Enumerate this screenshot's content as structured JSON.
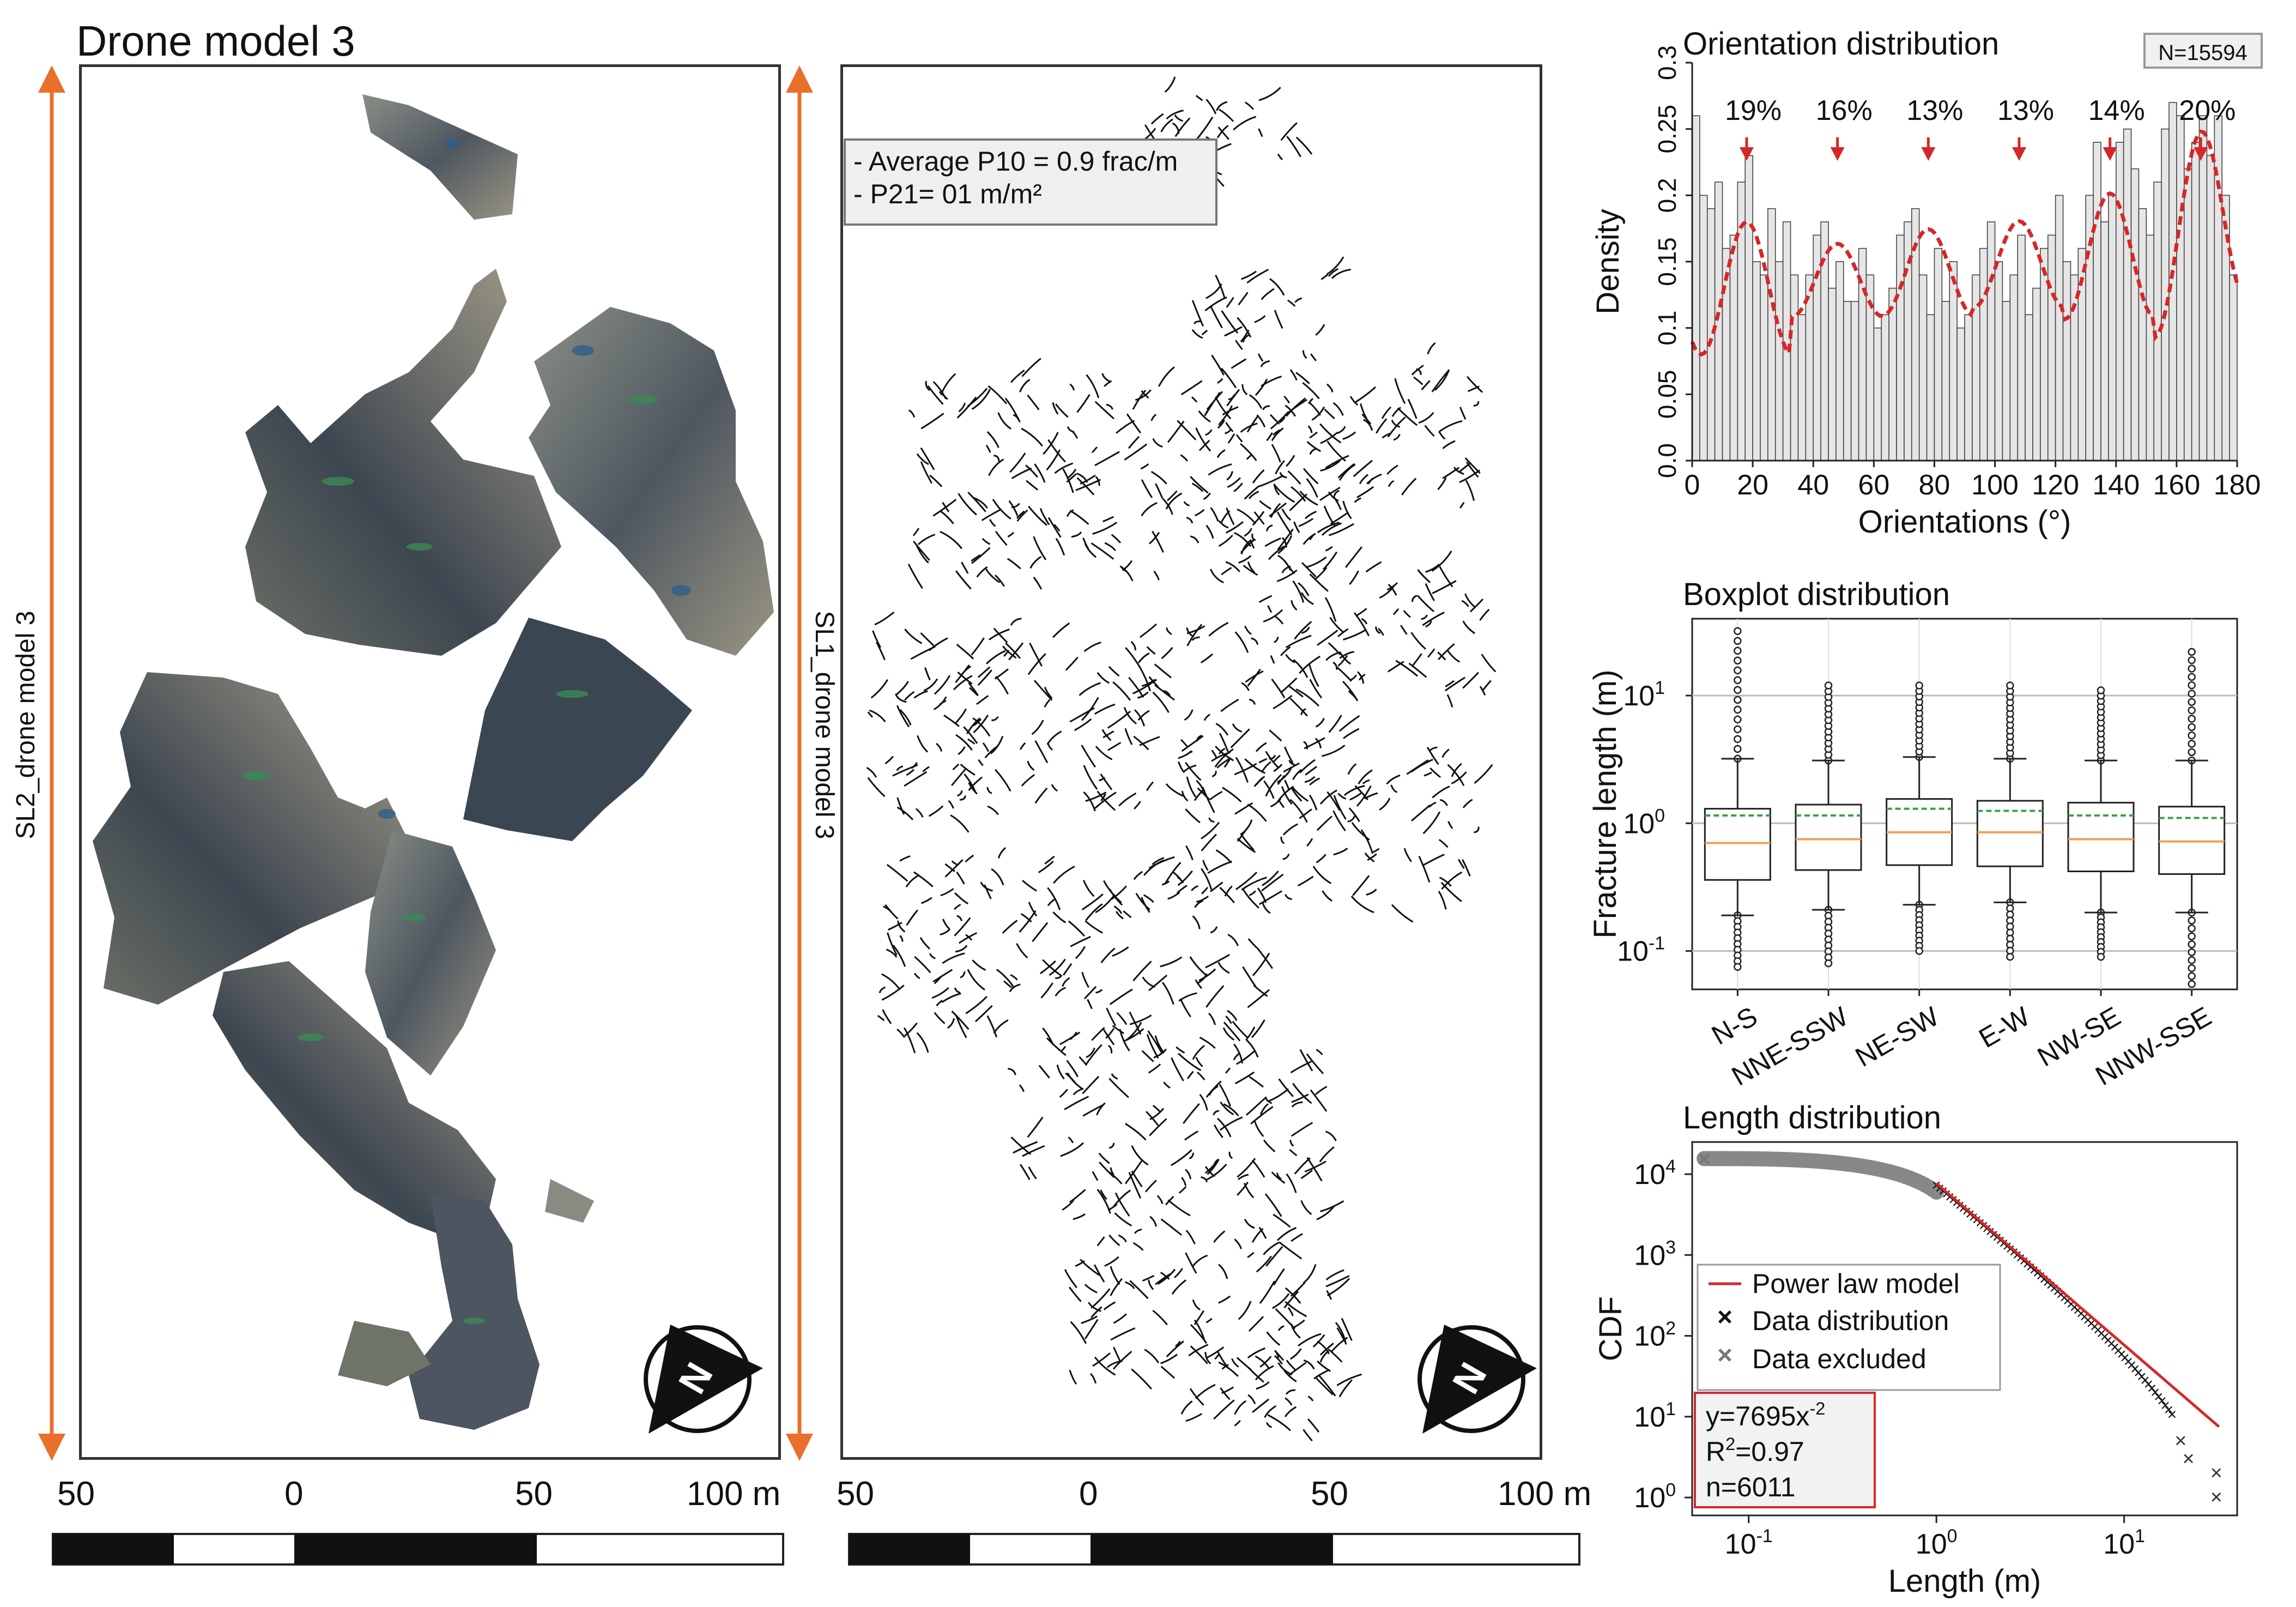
{
  "figure_title": "Drone model 3",
  "left_panel": {
    "side_label": "SL2_drone model 3"
  },
  "middle_panel": {
    "side_label": "SL1_drone model 3",
    "stats": [
      "- Average P10 = 0.9 frac/m",
      "- P21= 01 m/m²"
    ]
  },
  "north_letter": "N",
  "scale_bar_labels": [
    "50",
    "0",
    "50",
    "100 m"
  ],
  "colors": {
    "arrow": "#e8702a",
    "fit_line": "#d62728",
    "kde": "#d62728",
    "median": "#f0a050",
    "mean": "#3aa04a"
  },
  "chart_data": [
    {
      "type": "bar",
      "title": "Orientation distribution",
      "badge": "N=15594",
      "xlabel": "Orientations (°)",
      "ylabel": "Density",
      "xlim": [
        0,
        180
      ],
      "ylim": [
        0,
        0.3
      ],
      "xticks": [
        "0",
        "20",
        "40",
        "60",
        "80",
        "100",
        "120",
        "140",
        "160",
        "180"
      ],
      "yticks": [
        "0.0",
        "0.05",
        "0.1",
        "0.15",
        "0.2",
        "0.25",
        "0.3"
      ],
      "bin_width": 2.5,
      "values": [
        0.26,
        0.2,
        0.19,
        0.21,
        0.16,
        0.17,
        0.21,
        0.23,
        0.15,
        0.14,
        0.19,
        0.15,
        0.18,
        0.14,
        0.11,
        0.14,
        0.17,
        0.18,
        0.13,
        0.15,
        0.12,
        0.12,
        0.16,
        0.14,
        0.1,
        0.11,
        0.13,
        0.17,
        0.18,
        0.19,
        0.14,
        0.11,
        0.16,
        0.12,
        0.15,
        0.1,
        0.11,
        0.14,
        0.16,
        0.18,
        0.15,
        0.12,
        0.14,
        0.17,
        0.11,
        0.13,
        0.16,
        0.17,
        0.2,
        0.15,
        0.14,
        0.16,
        0.2,
        0.24,
        0.18,
        0.2,
        0.24,
        0.25,
        0.22,
        0.19,
        0.17,
        0.21,
        0.25,
        0.27,
        0.26,
        0.22,
        0.24,
        0.26,
        0.23,
        0.26,
        0.2,
        0.14
      ],
      "peaks": [
        {
          "x": 18,
          "label": "19%"
        },
        {
          "x": 48,
          "label": "16%"
        },
        {
          "x": 78,
          "label": "13%"
        },
        {
          "x": 108,
          "label": "13%"
        },
        {
          "x": 138,
          "label": "14%"
        },
        {
          "x": 168,
          "label": "20%"
        }
      ],
      "kde": {
        "baseline": 0.13,
        "amplitudes": [
          0.1,
          0.055,
          0.065,
          0.065,
          0.095,
          0.14
        ],
        "period_deg": 30,
        "first_peak_deg": 18,
        "trough_values": [
          0.13,
          0.085,
          0.075,
          0.085,
          0.09,
          0.11,
          0.13
        ]
      }
    },
    {
      "type": "box",
      "title": "Boxplot distribution",
      "ylabel": "Fracture length (m)",
      "yscale": "log",
      "ylim": [
        0.05,
        40
      ],
      "yticks": [
        {
          "v": 10,
          "label": "10",
          "exp": "1"
        },
        {
          "v": 1,
          "label": "10",
          "exp": "0"
        },
        {
          "v": 0.1,
          "label": "10",
          "exp": "-1"
        }
      ],
      "categories": [
        "N-S",
        "NNE-SSW",
        "NE-SW",
        "E-W",
        "NW-SE",
        "NNW-SSE"
      ],
      "boxes": [
        {
          "q1": 0.36,
          "median": 0.7,
          "q3": 1.3,
          "mean": 1.15,
          "wlo": 0.19,
          "whi": 3.2,
          "fmin": 0.075,
          "fmax": 32
        },
        {
          "q1": 0.43,
          "median": 0.75,
          "q3": 1.4,
          "mean": 1.15,
          "wlo": 0.21,
          "whi": 3.1,
          "fmin": 0.08,
          "fmax": 12
        },
        {
          "q1": 0.47,
          "median": 0.85,
          "q3": 1.55,
          "mean": 1.3,
          "wlo": 0.23,
          "whi": 3.3,
          "fmin": 0.1,
          "fmax": 12
        },
        {
          "q1": 0.46,
          "median": 0.85,
          "q3": 1.5,
          "mean": 1.25,
          "wlo": 0.24,
          "whi": 3.2,
          "fmin": 0.09,
          "fmax": 12
        },
        {
          "q1": 0.42,
          "median": 0.75,
          "q3": 1.45,
          "mean": 1.15,
          "wlo": 0.2,
          "whi": 3.1,
          "fmin": 0.09,
          "fmax": 11
        },
        {
          "q1": 0.4,
          "median": 0.72,
          "q3": 1.35,
          "mean": 1.1,
          "wlo": 0.2,
          "whi": 3.1,
          "fmin": 0.055,
          "fmax": 22
        }
      ]
    },
    {
      "type": "scatter",
      "title": "Length distribution",
      "xlabel": "Length (m)",
      "ylabel": "CDF",
      "xscale": "log",
      "yscale": "log",
      "xlim": [
        0.05,
        40
      ],
      "ylim": [
        0.6,
        25000
      ],
      "xticks": [
        {
          "v": 0.1,
          "label": "10",
          "exp": "-1"
        },
        {
          "v": 1,
          "label": "10",
          "exp": "0"
        },
        {
          "v": 10,
          "label": "10",
          "exp": "1"
        }
      ],
      "yticks": [
        {
          "v": 1,
          "exp": "0"
        },
        {
          "v": 10,
          "exp": "1"
        },
        {
          "v": 100,
          "exp": "2"
        },
        {
          "v": 1000,
          "exp": "3"
        },
        {
          "v": 10000,
          "exp": "4"
        }
      ],
      "legend": [
        "Power law model",
        "Data distribution",
        "Data excluded"
      ],
      "fit": {
        "a": 7695,
        "b": -2,
        "x_start": 1,
        "x_end": 32
      },
      "equation": {
        "base": "y=7695x",
        "exp": "-2"
      },
      "r2": {
        "pre": "R",
        "sup": "2",
        "post": "=0.97"
      },
      "n": "n=6011",
      "excluded": {
        "x_start": 0.058,
        "x_end": 1,
        "y_start": 15594,
        "y_end": 6011
      },
      "included_tail": [
        [
          20,
          5
        ],
        [
          22,
          3
        ],
        [
          31,
          2
        ],
        [
          31,
          1
        ]
      ]
    }
  ]
}
